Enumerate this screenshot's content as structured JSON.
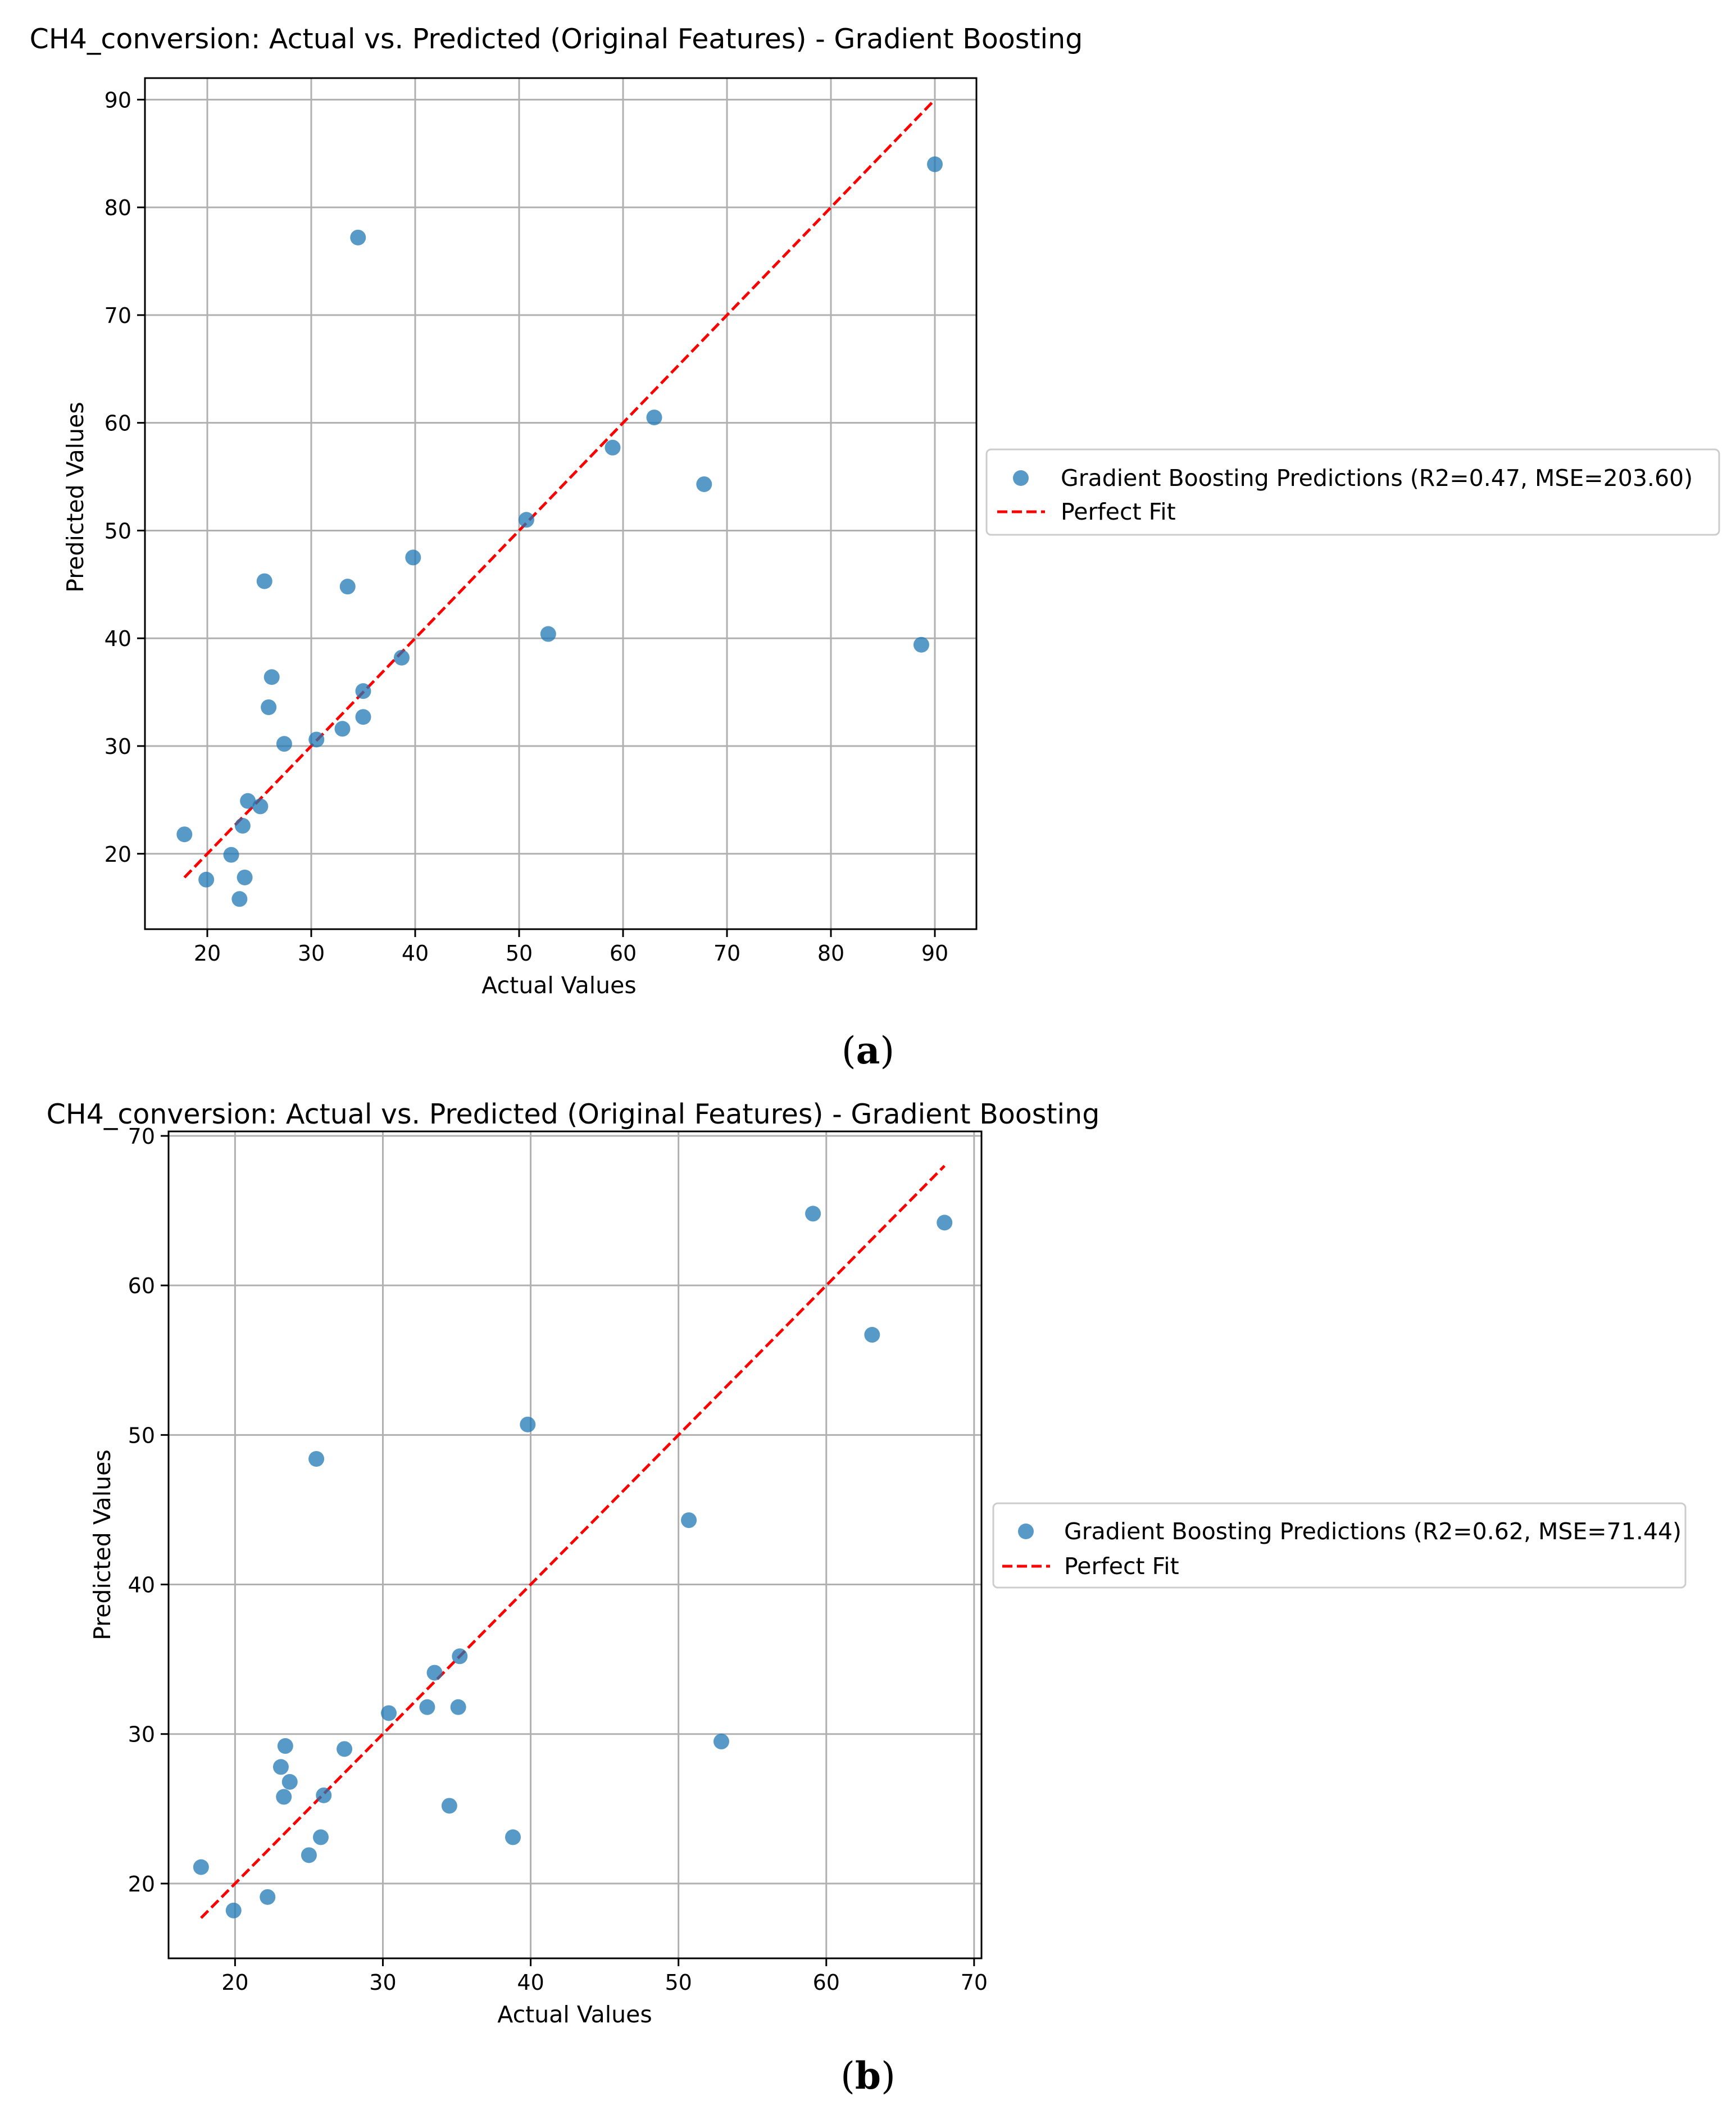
{
  "chart_data": [
    {
      "type": "scatter",
      "title": "CH4_conversion: Actual vs. Predicted (Original Features) - Gradient Boosting",
      "xlabel": "Actual Values",
      "ylabel": "Predicted Values",
      "xlim": [
        14,
        94
      ],
      "ylim": [
        13,
        92
      ],
      "xticks": [
        20,
        30,
        40,
        50,
        60,
        70,
        80,
        90
      ],
      "yticks": [
        20,
        30,
        40,
        50,
        60,
        70,
        80,
        90
      ],
      "grid": true,
      "legend": "right-outside",
      "series": [
        {
          "name": "Gradient Boosting Predictions (R2=0.47, MSE=203.60)",
          "color": "#1f77b4",
          "x": [
            90,
            34.5,
            63,
            59,
            67.8,
            50.7,
            39.8,
            25.5,
            33.5,
            52.8,
            88.7,
            38.7,
            26.2,
            35,
            25.9,
            35,
            33,
            30.5,
            27.4,
            23.9,
            25.1,
            23.4,
            17.8,
            22.3,
            19.9,
            23.6,
            23.1
          ],
          "y": [
            84,
            77.2,
            60.5,
            57.7,
            54.3,
            51,
            47.5,
            45.3,
            44.8,
            40.4,
            39.4,
            38.2,
            36.4,
            35.1,
            33.6,
            32.7,
            31.6,
            30.6,
            30.2,
            24.9,
            24.4,
            22.6,
            21.8,
            19.9,
            17.6,
            17.8,
            15.8
          ]
        },
        {
          "name": "Perfect Fit",
          "color": "#ff0000",
          "x": [
            17.8,
            90
          ],
          "y": [
            17.8,
            90
          ]
        }
      ],
      "caption": "a"
    },
    {
      "type": "scatter",
      "title": "CH4_conversion: Actual vs. Predicted (Original Features) - Gradient Boosting",
      "xlabel": "Actual Values",
      "ylabel": "Predicted Values",
      "xlim": [
        15.5,
        70.5
      ],
      "ylim": [
        15,
        70.3
      ],
      "xticks": [
        20,
        30,
        40,
        50,
        60,
        70
      ],
      "yticks": [
        20,
        30,
        40,
        50,
        60,
        70
      ],
      "grid": true,
      "legend": "right-outside",
      "series": [
        {
          "name": "Gradient Boosting Predictions (R2=0.62, MSE=71.44)",
          "color": "#1f77b4",
          "x": [
            59.1,
            68,
            63.1,
            39.8,
            25.5,
            50.7,
            35.2,
            33.5,
            30.4,
            33,
            35.1,
            52.9,
            27.4,
            23.4,
            23.1,
            23.7,
            23.3,
            26,
            34.5,
            25.8,
            38.8,
            25,
            17.7,
            22.2,
            19.9
          ],
          "y": [
            64.8,
            64.2,
            56.7,
            50.7,
            48.4,
            44.3,
            35.2,
            34.1,
            31.4,
            31.8,
            31.8,
            29.5,
            29,
            29.2,
            27.8,
            26.8,
            25.8,
            25.9,
            25.2,
            23.1,
            23.1,
            21.9,
            21.1,
            19.1,
            18.2
          ]
        },
        {
          "name": "Perfect Fit",
          "color": "#ff0000",
          "x": [
            17.7,
            68
          ],
          "y": [
            17.7,
            68
          ]
        }
      ],
      "caption": "b"
    }
  ]
}
